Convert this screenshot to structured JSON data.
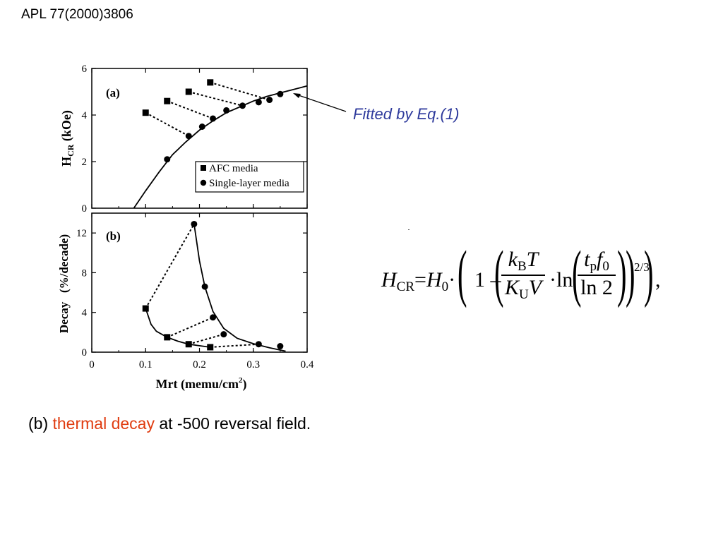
{
  "header": {
    "citation": "APL 77(2000)3806"
  },
  "annotation": {
    "fitted_label": "Fitted by Eq.(1)"
  },
  "caption": {
    "prefix": "(b) ",
    "highlight": "thermal decay",
    "suffix": " at -500 reversal field."
  },
  "colors": {
    "highlight": "#e03c10",
    "annotation": "#2e3a9c"
  },
  "equation": {
    "lhs_main": "H",
    "lhs_sub": "CR",
    "h0": "H",
    "h0_sub": "0",
    "one": "1",
    "num_k": "k",
    "num_k_sub": "B",
    "num_t": "T",
    "den_k": "K",
    "den_k_sub": "U",
    "den_v": "V",
    "ln": "ln",
    "tp": "t",
    "tp_sub": "p",
    "f0": "f",
    "f0_sub": "0",
    "ln2": "ln 2",
    "exponent": "2/3"
  },
  "chart_data": [
    {
      "type": "scatter",
      "panel_label": "(a)",
      "xlabel": "",
      "ylabel_main": "H",
      "ylabel_sub": "CR",
      "ylabel_unit": "(kOe)",
      "xlim": [
        0,
        0.4
      ],
      "ylim": [
        0,
        6
      ],
      "x_ticks": [
        0,
        0.1,
        0.2,
        0.3,
        0.4
      ],
      "y_ticks": [
        0,
        2,
        4,
        6
      ],
      "y_tick_labels": [
        "0",
        "2",
        "4",
        "6"
      ],
      "legend_position": "bottom-right",
      "series": [
        {
          "name": "AFC media",
          "marker": "square",
          "x": [
            0.1,
            0.14,
            0.18,
            0.22
          ],
          "y": [
            4.1,
            4.6,
            5.0,
            5.4
          ]
        },
        {
          "name": "Single-layer media",
          "marker": "circle",
          "x": [
            0.14,
            0.18,
            0.205,
            0.225,
            0.25,
            0.28,
            0.31,
            0.33,
            0.35
          ],
          "y": [
            2.1,
            3.1,
            3.5,
            3.85,
            4.2,
            4.4,
            4.55,
            4.65,
            4.9
          ]
        }
      ],
      "dashed_links": [
        [
          [
            0.1,
            4.1
          ],
          [
            0.18,
            3.1
          ]
        ],
        [
          [
            0.14,
            4.6
          ],
          [
            0.225,
            3.85
          ]
        ],
        [
          [
            0.18,
            5.0
          ],
          [
            0.28,
            4.4
          ]
        ],
        [
          [
            0.22,
            5.4
          ],
          [
            0.33,
            4.65
          ]
        ]
      ],
      "fit_curve": {
        "x": [
          0.078,
          0.1,
          0.125,
          0.15,
          0.175,
          0.2,
          0.225,
          0.25,
          0.275,
          0.3,
          0.325,
          0.35,
          0.375,
          0.4
        ],
        "y": [
          0.0,
          0.75,
          1.55,
          2.3,
          2.85,
          3.35,
          3.75,
          4.1,
          4.35,
          4.6,
          4.8,
          4.95,
          5.1,
          5.25
        ]
      }
    },
    {
      "type": "scatter",
      "panel_label": "(b)",
      "xlabel": "Mrt (memu/cm",
      "xlabel_sup": "2",
      "xlabel_close": ")",
      "ylabel": "Decay   (%/decade)",
      "xlim": [
        0,
        0.4
      ],
      "ylim": [
        0,
        14
      ],
      "x_ticks": [
        0,
        0.1,
        0.2,
        0.3,
        0.4
      ],
      "x_tick_labels": [
        "0",
        "0.1",
        "0.2",
        "0.3",
        "0.4"
      ],
      "y_ticks": [
        0,
        4,
        8,
        12
      ],
      "y_tick_labels": [
        "0",
        "4",
        "8",
        "12"
      ],
      "series": [
        {
          "name": "AFC media",
          "marker": "square",
          "x": [
            0.1,
            0.14,
            0.18,
            0.22
          ],
          "y": [
            4.4,
            1.5,
            0.8,
            0.5
          ]
        },
        {
          "name": "Single-layer media",
          "marker": "circle",
          "x": [
            0.19,
            0.21,
            0.225,
            0.245,
            0.31,
            0.35
          ],
          "y": [
            12.9,
            6.6,
            3.5,
            1.8,
            0.8,
            0.6
          ]
        }
      ],
      "dashed_links": [
        [
          [
            0.1,
            4.4
          ],
          [
            0.19,
            12.9
          ]
        ],
        [
          [
            0.14,
            1.5
          ],
          [
            0.225,
            3.5
          ]
        ],
        [
          [
            0.18,
            0.8
          ],
          [
            0.245,
            1.8
          ]
        ],
        [
          [
            0.22,
            0.5
          ],
          [
            0.31,
            0.8
          ]
        ]
      ],
      "afc_curve": {
        "x": [
          0.1,
          0.11,
          0.12,
          0.14,
          0.16,
          0.18,
          0.2,
          0.22
        ],
        "y": [
          4.4,
          2.8,
          2.1,
          1.5,
          1.1,
          0.8,
          0.65,
          0.5
        ]
      },
      "single_curve": {
        "x": [
          0.19,
          0.2,
          0.21,
          0.225,
          0.245,
          0.27,
          0.3,
          0.33,
          0.36
        ],
        "y": [
          12.9,
          9.2,
          6.6,
          4.1,
          2.4,
          1.4,
          0.85,
          0.45,
          0.1
        ]
      }
    }
  ]
}
